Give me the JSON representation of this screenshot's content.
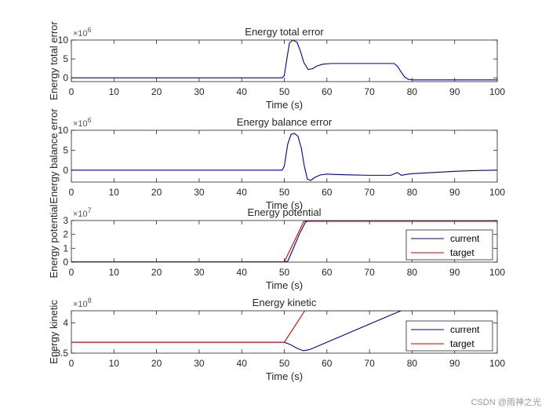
{
  "figure": {
    "watermark": "CSDN @雨神之光"
  },
  "colors": {
    "current": "#00008b",
    "target": "#cc0000",
    "single": "#00008b",
    "axis": "#262626"
  },
  "chart_data": [
    {
      "type": "line",
      "title": "Energy total error",
      "xlabel": "Time (s)",
      "ylabel": "Energy total error",
      "exponent_label": "×10^6",
      "exponent_base": "×10",
      "exponent_power": "6",
      "xlim": [
        0,
        100
      ],
      "ylim": [
        -1,
        10
      ],
      "xticks": [
        0,
        10,
        20,
        30,
        40,
        50,
        60,
        70,
        80,
        90,
        100
      ],
      "yticks": [
        0,
        5,
        10
      ],
      "legend": null,
      "series": [
        {
          "name": "error",
          "color_key": "single",
          "x": [
            0,
            49.5,
            50,
            50.6,
            51.2,
            52,
            53,
            53.8,
            54.6,
            55.6,
            56.6,
            57.6,
            59,
            61,
            63,
            66,
            70,
            74,
            75.8,
            76.6,
            77.4,
            78.2,
            79.1,
            80.2,
            85,
            90,
            95,
            100
          ],
          "y": [
            0,
            0,
            0.6,
            5,
            9.2,
            10,
            9.4,
            7,
            4,
            2.2,
            2.4,
            3.1,
            3.6,
            3.8,
            3.8,
            3.8,
            3.8,
            3.8,
            3.8,
            3,
            1.6,
            0.3,
            -0.4,
            -0.55,
            -0.55,
            -0.55,
            -0.55,
            -0.55
          ]
        }
      ]
    },
    {
      "type": "line",
      "title": "Energy balance error",
      "xlabel": "Time (s)",
      "ylabel": "Energy balance error",
      "exponent_label": "×10^6",
      "exponent_base": "×10",
      "exponent_power": "6",
      "xlim": [
        0,
        100
      ],
      "ylim": [
        -3,
        10
      ],
      "xticks": [
        0,
        10,
        20,
        30,
        40,
        50,
        60,
        70,
        80,
        90,
        100
      ],
      "yticks": [
        0,
        5,
        10
      ],
      "legend": null,
      "series": [
        {
          "name": "error",
          "color_key": "single",
          "x": [
            0,
            49.5,
            50,
            50.8,
            51.6,
            52.4,
            53.2,
            54,
            54.7,
            55.4,
            56.2,
            57.2,
            58.5,
            60,
            62,
            65,
            70,
            75,
            76.5,
            77.5,
            78.5,
            80,
            85,
            90,
            95,
            100
          ],
          "y": [
            0,
            0,
            1,
            6.5,
            9,
            9.2,
            8.5,
            5.5,
            1,
            -2.2,
            -2.6,
            -1.8,
            -1.2,
            -1,
            -1.1,
            -1.2,
            -1.3,
            -1.3,
            -0.6,
            -1.3,
            -1.1,
            -0.9,
            -0.6,
            -0.3,
            -0.1,
            0
          ]
        }
      ]
    },
    {
      "type": "line",
      "title": "Energy potential",
      "xlabel": "Time (s)",
      "ylabel": "Energy potential",
      "exponent_label": "×10^7",
      "exponent_base": "×10",
      "exponent_power": "7",
      "xlim": [
        0,
        100
      ],
      "ylim": [
        0,
        3
      ],
      "xticks": [
        0,
        10,
        20,
        30,
        40,
        50,
        60,
        70,
        80,
        90,
        100
      ],
      "yticks": [
        0,
        1,
        2,
        3
      ],
      "legend": {
        "location": "lower-right",
        "entries": [
          "current",
          "target"
        ]
      },
      "series": [
        {
          "name": "current",
          "color_key": "current",
          "x": [
            0,
            50,
            50.8,
            52,
            53.5,
            55,
            55.6,
            100
          ],
          "y": [
            0.02,
            0.02,
            0.05,
            0.9,
            2,
            2.9,
            2.95,
            2.95
          ]
        },
        {
          "name": "target",
          "color_key": "target",
          "x": [
            0,
            50,
            54.6,
            100
          ],
          "y": [
            0.02,
            0.02,
            2.95,
            2.95
          ]
        }
      ]
    },
    {
      "type": "line",
      "title": "Energy kinetic",
      "xlabel": "Time (s)",
      "ylabel": "Energy kinetic",
      "exponent_label": "×10^8",
      "exponent_base": "×10",
      "exponent_power": "8",
      "xlim": [
        0,
        100
      ],
      "ylim": [
        3.5,
        4.2
      ],
      "xticks": [
        0,
        10,
        20,
        30,
        40,
        50,
        60,
        70,
        80,
        90,
        100
      ],
      "yticks": [
        3.5,
        4
      ],
      "legend": {
        "location": "lower-right",
        "entries": [
          "current",
          "target"
        ]
      },
      "series": [
        {
          "name": "current",
          "color_key": "current",
          "x": [
            0,
            50,
            51.5,
            53,
            54.5,
            56,
            58,
            62,
            66,
            70,
            74,
            77.4,
            100
          ],
          "y": [
            3.68,
            3.68,
            3.64,
            3.58,
            3.54,
            3.56,
            3.62,
            3.74,
            3.86,
            3.98,
            4.1,
            4.2,
            4.2
          ]
        },
        {
          "name": "target",
          "color_key": "target",
          "x": [
            0,
            50,
            54.8,
            100
          ],
          "y": [
            3.68,
            3.68,
            4.2,
            4.2
          ]
        }
      ]
    }
  ]
}
